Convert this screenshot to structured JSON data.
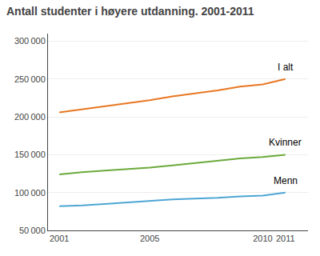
{
  "chart_data": {
    "type": "line",
    "title": "Antall studenter i høyere utdanning. 2001-2011",
    "x": [
      2001,
      2002,
      2003,
      2004,
      2005,
      2006,
      2007,
      2008,
      2009,
      2010,
      2011
    ],
    "series": [
      {
        "name": "I alt",
        "color": "#e87722",
        "values": [
          206000,
          210000,
          214000,
          218000,
          222000,
          227000,
          231000,
          235000,
          240000,
          243000,
          250000
        ]
      },
      {
        "name": "Kvinner",
        "color": "#6aaa3a",
        "values": [
          124000,
          127000,
          129000,
          131000,
          133000,
          136000,
          139000,
          142000,
          145000,
          147000,
          150000
        ]
      },
      {
        "name": "Menn",
        "color": "#4da6d5",
        "values": [
          82000,
          83000,
          85000,
          87000,
          89000,
          91000,
          92000,
          93000,
          95000,
          96000,
          100000
        ]
      }
    ],
    "xlim": [
      2000.5,
      2012.0
    ],
    "xticks": [
      2001,
      2005,
      2010,
      2011
    ],
    "ylim": [
      50000,
      310000
    ],
    "yticks": [
      {
        "value": 50000,
        "label": "50 000"
      },
      {
        "value": 100000,
        "label": "100 000"
      },
      {
        "value": 150000,
        "label": "150 000"
      },
      {
        "value": 200000,
        "label": "200 000"
      },
      {
        "value": 250000,
        "label": "250 000"
      },
      {
        "value": 300000,
        "label": "300 000"
      }
    ],
    "grid": "y"
  }
}
